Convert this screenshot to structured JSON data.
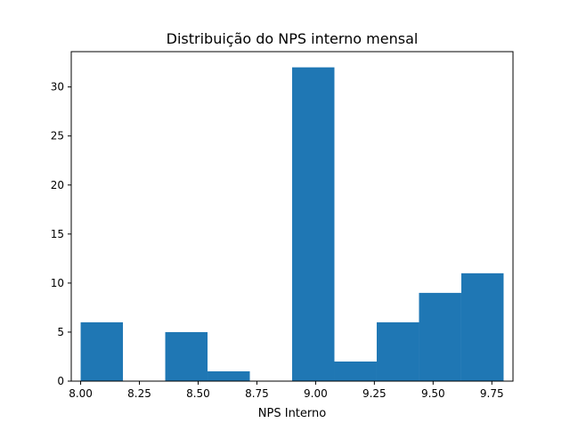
{
  "chart_data": {
    "type": "bar",
    "subtype": "histogram",
    "title": "Distribuição do NPS interno mensal",
    "xlabel": "NPS Interno",
    "ylabel": "",
    "xlim": [
      7.96,
      9.84
    ],
    "ylim": [
      0,
      33.6
    ],
    "bin_edges": [
      8.0,
      8.18,
      8.36,
      8.54,
      8.72,
      8.9,
      9.08,
      9.26,
      9.44,
      9.62,
      9.8
    ],
    "counts": [
      6,
      0,
      5,
      1,
      0,
      32,
      2,
      6,
      9,
      11
    ],
    "x_ticks": [
      8.0,
      8.25,
      8.5,
      8.75,
      9.0,
      9.25,
      9.5,
      9.75
    ],
    "x_tick_labels": [
      "8.00",
      "8.25",
      "8.50",
      "8.75",
      "9.00",
      "9.25",
      "9.50",
      "9.75"
    ],
    "y_ticks": [
      0,
      5,
      10,
      15,
      20,
      25,
      30
    ],
    "y_tick_labels": [
      "0",
      "5",
      "10",
      "15",
      "20",
      "25",
      "30"
    ],
    "bar_color": "#1f77b4",
    "grid": false,
    "legend": false
  }
}
